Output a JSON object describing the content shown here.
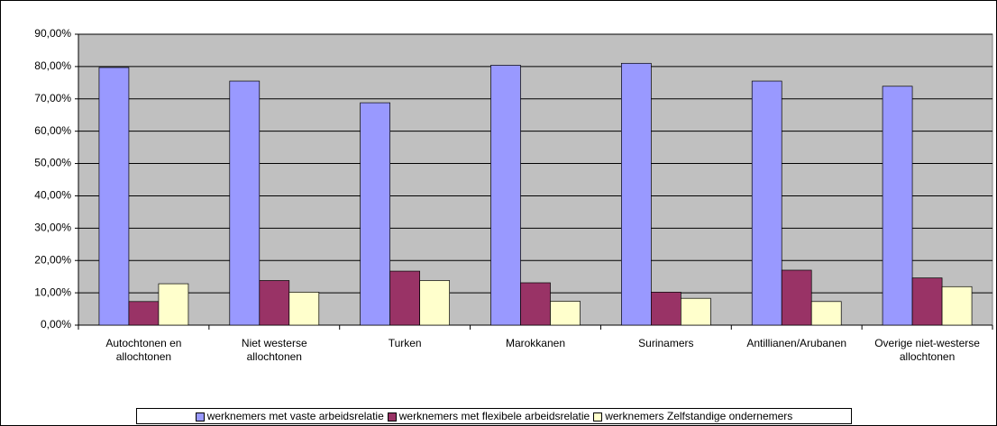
{
  "chart_data": {
    "type": "bar",
    "categories": [
      "Autochtonen en allochtonen",
      "Niet westerse allochtonen",
      "Turken",
      "Marokkanen",
      "Surinamers",
      "Antillianen/Arubanen",
      "Overige niet-westerse allochtonen"
    ],
    "series": [
      {
        "name": "werknemers met vaste arbeidsrelatie",
        "color": "#9999ff",
        "values": [
          79.7,
          75.5,
          68.8,
          80.4,
          81.0,
          75.5,
          73.9
        ]
      },
      {
        "name": "werknemers met flexibele arbeidsrelatie",
        "color": "#993366",
        "values": [
          7.3,
          13.8,
          16.7,
          13.1,
          10.2,
          17.0,
          14.6
        ]
      },
      {
        "name": "werknemers Zelfstandige ondernemers",
        "color": "#ffffcc",
        "values": [
          12.8,
          10.2,
          13.8,
          7.4,
          8.3,
          7.3,
          11.9
        ]
      }
    ],
    "ylim": [
      0,
      90
    ],
    "yticks": [
      {
        "value": 0,
        "label": "0,00%"
      },
      {
        "value": 10,
        "label": "10,00%"
      },
      {
        "value": 20,
        "label": "20,00%"
      },
      {
        "value": 30,
        "label": "30,00%"
      },
      {
        "value": 40,
        "label": "40,00%"
      },
      {
        "value": 50,
        "label": "50,00%"
      },
      {
        "value": 60,
        "label": "60,00%"
      },
      {
        "value": 70,
        "label": "70,00%"
      },
      {
        "value": 80,
        "label": "80,00%"
      },
      {
        "value": 90,
        "label": "90,00%"
      }
    ],
    "grid": true,
    "legend": "bottom",
    "plot_background": "#c0c0c0"
  }
}
